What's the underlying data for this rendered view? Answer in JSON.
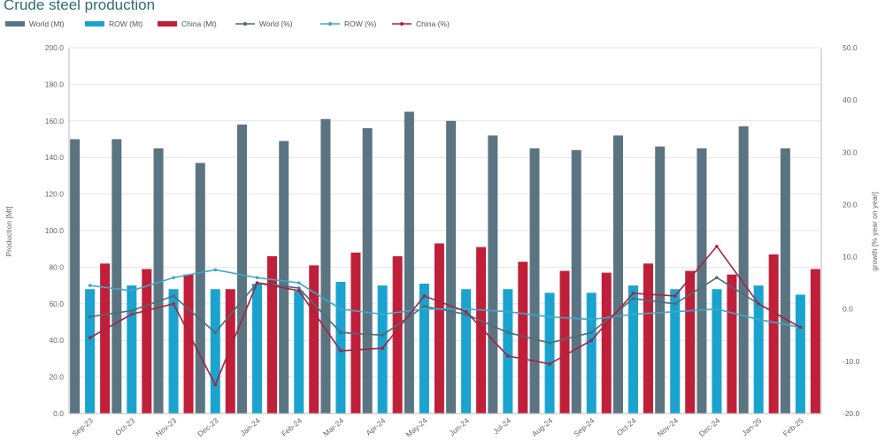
{
  "chart_data": {
    "type": "bar",
    "title": "Crude steel production",
    "categories": [
      "Sep-23",
      "Oct-23",
      "Nov-23",
      "Dec-23",
      "Jan-24",
      "Feb-24",
      "Mar-24",
      "Apr-24",
      "May-24",
      "Jun-24",
      "Jul-24",
      "Aug-24",
      "Sep-24",
      "Oct-24",
      "Nov-24",
      "Dec-24",
      "Jan-25",
      "Feb-25"
    ],
    "ylabel": "Production [Mt]",
    "ylabel_right": "growth [% year on year]",
    "ylim": [
      0,
      200
    ],
    "ylim_right": [
      -20,
      50
    ],
    "yticks": [
      "0.0",
      "20.0",
      "40.0",
      "60.0",
      "80.0",
      "100.0",
      "120.0",
      "140.0",
      "160.0",
      "180.0",
      "200.0"
    ],
    "yticks_right": [
      "-20.0",
      "-10.0",
      "0.0",
      "10.0",
      "20.0",
      "30.0",
      "40.0",
      "50.0"
    ],
    "grid": true,
    "legend_position": "top-left",
    "series": [
      {
        "name": "World (Mt)",
        "kind": "bar",
        "axis": "left",
        "color": "#5b7482",
        "values": [
          150,
          150,
          145,
          137,
          158,
          149,
          161,
          156,
          165,
          160,
          152,
          145,
          144,
          152,
          146,
          145,
          157,
          145
        ]
      },
      {
        "name": "ROW (Mt)",
        "kind": "bar",
        "axis": "left",
        "color": "#1aa3cf",
        "values": [
          68,
          70,
          68,
          68,
          71,
          67,
          72,
          70,
          71,
          68,
          68,
          66,
          66,
          70,
          68,
          68,
          70,
          65
        ]
      },
      {
        "name": "China (Mt)",
        "kind": "bar",
        "axis": "left",
        "color": "#c01f3a",
        "values": [
          82,
          79,
          76,
          68,
          86,
          81,
          88,
          86,
          93,
          91,
          83,
          78,
          77,
          82,
          78,
          76,
          87,
          79
        ]
      },
      {
        "name": "World (%)",
        "kind": "line",
        "axis": "right",
        "color": "#4e6b78",
        "values": [
          -1.5,
          -0.3,
          2.5,
          -4.5,
          5.0,
          4.0,
          -4.5,
          -5.0,
          0.5,
          -1.0,
          -4.5,
          -6.5,
          -4.5,
          2.0,
          1.0,
          6.0,
          1.0,
          -3.5
        ]
      },
      {
        "name": "ROW (%)",
        "kind": "line",
        "axis": "right",
        "color": "#3fa8c8",
        "values": [
          4.5,
          3.5,
          6.0,
          7.5,
          6.0,
          5.0,
          0.0,
          -1.0,
          0.0,
          0.0,
          -0.5,
          -1.5,
          -2.0,
          -1.0,
          -0.5,
          0.0,
          -2.0,
          -3.5
        ]
      },
      {
        "name": "China (%)",
        "kind": "line",
        "axis": "right",
        "color": "#a3243f",
        "values": [
          -5.5,
          -1.0,
          1.0,
          -14.5,
          5.0,
          3.5,
          -8.0,
          -7.5,
          2.5,
          -0.5,
          -9.0,
          -10.5,
          -6.0,
          3.0,
          2.5,
          12.0,
          1.0,
          -3.5
        ]
      }
    ]
  }
}
